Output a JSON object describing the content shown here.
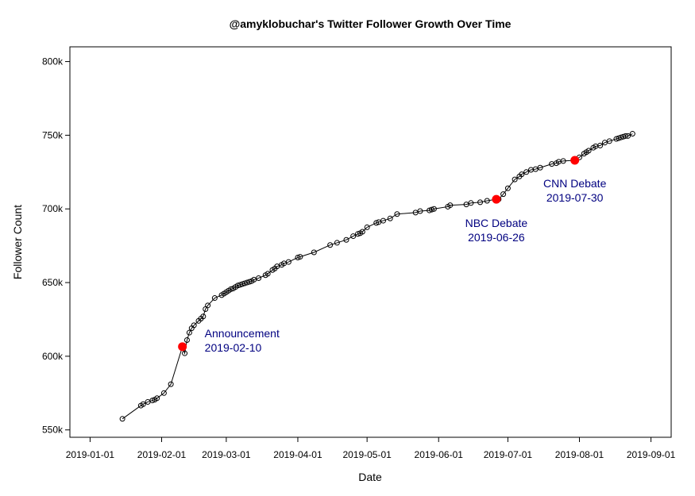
{
  "chart_data": {
    "type": "line",
    "title": "@amyklobuchar's Twitter Follower Growth Over Time",
    "xlabel": "Date",
    "ylabel": "Follower Count",
    "xlim": [
      "2019-01-01",
      "2019-09-01"
    ],
    "ylim": [
      545000,
      810000
    ],
    "x_ticks": [
      "2019-01-01",
      "2019-02-01",
      "2019-03-01",
      "2019-04-01",
      "2019-05-01",
      "2019-06-01",
      "2019-07-01",
      "2019-08-01",
      "2019-09-01"
    ],
    "y_ticks": [
      550000,
      600000,
      650000,
      700000,
      750000,
      800000
    ],
    "y_tick_labels": [
      "550k",
      "600k",
      "650k",
      "700k",
      "750k",
      "800k"
    ],
    "grid": false,
    "line_color": "#000000",
    "marker": "open-circle",
    "series": [
      {
        "x": [
          "2019-01-15",
          "2019-01-23",
          "2019-01-24",
          "2019-01-26",
          "2019-01-28",
          "2019-01-29",
          "2019-01-30",
          "2019-02-02",
          "2019-02-05",
          "2019-02-10",
          "2019-02-11",
          "2019-02-12",
          "2019-02-13",
          "2019-02-14",
          "2019-02-15",
          "2019-02-17",
          "2019-02-18",
          "2019-02-19",
          "2019-02-20",
          "2019-02-21",
          "2019-02-24",
          "2019-02-27",
          "2019-02-28",
          "2019-03-01",
          "2019-03-02",
          "2019-03-03",
          "2019-03-04",
          "2019-03-05",
          "2019-03-06",
          "2019-03-07",
          "2019-03-08",
          "2019-03-09",
          "2019-03-10",
          "2019-03-11",
          "2019-03-12",
          "2019-03-13",
          "2019-03-15",
          "2019-03-18",
          "2019-03-19",
          "2019-03-21",
          "2019-03-22",
          "2019-03-23",
          "2019-03-25",
          "2019-03-26",
          "2019-03-28",
          "2019-04-01",
          "2019-04-02",
          "2019-04-08",
          "2019-04-15",
          "2019-04-18",
          "2019-04-22",
          "2019-04-25",
          "2019-04-27",
          "2019-04-28",
          "2019-04-29",
          "2019-05-01",
          "2019-05-05",
          "2019-05-06",
          "2019-05-08",
          "2019-05-11",
          "2019-05-14",
          "2019-05-22",
          "2019-05-24",
          "2019-05-28",
          "2019-05-29",
          "2019-05-30",
          "2019-06-05",
          "2019-06-06",
          "2019-06-13",
          "2019-06-15",
          "2019-06-19",
          "2019-06-22",
          "2019-06-26",
          "2019-06-27",
          "2019-06-29",
          "2019-07-01",
          "2019-07-04",
          "2019-07-06",
          "2019-07-07",
          "2019-07-09",
          "2019-07-11",
          "2019-07-13",
          "2019-07-15",
          "2019-07-20",
          "2019-07-22",
          "2019-07-23",
          "2019-07-25",
          "2019-07-30",
          "2019-08-01",
          "2019-08-03",
          "2019-08-04",
          "2019-08-05",
          "2019-08-07",
          "2019-08-08",
          "2019-08-10",
          "2019-08-12",
          "2019-08-14",
          "2019-08-17",
          "2019-08-18",
          "2019-08-19",
          "2019-08-20",
          "2019-08-21",
          "2019-08-22",
          "2019-08-24"
        ],
        "y": [
          557500,
          566500,
          567500,
          569000,
          570000,
          570500,
          571500,
          575000,
          581000,
          606500,
          602000,
          611000,
          616000,
          619000,
          621000,
          624000,
          625500,
          627000,
          632000,
          634500,
          639500,
          641500,
          642500,
          643500,
          644500,
          645500,
          646000,
          647000,
          648000,
          648500,
          649000,
          649500,
          650000,
          650500,
          651000,
          652000,
          653000,
          655000,
          656000,
          658500,
          659500,
          661000,
          662000,
          663000,
          664000,
          667000,
          667500,
          670500,
          675500,
          677000,
          679000,
          681500,
          683000,
          683500,
          684500,
          687500,
          690500,
          691000,
          692000,
          693500,
          696500,
          697500,
          698500,
          699000,
          699500,
          700000,
          701500,
          702500,
          703000,
          704000,
          704500,
          705500,
          706500,
          706500,
          710000,
          714000,
          720000,
          722000,
          723500,
          725000,
          726500,
          727000,
          728000,
          730500,
          731000,
          732000,
          732500,
          733000,
          735000,
          737500,
          738500,
          739500,
          741500,
          742500,
          743000,
          745000,
          746000,
          747500,
          748000,
          748500,
          749000,
          749500,
          749500,
          751000
        ]
      }
    ],
    "highlight_color": "#ff0000",
    "annotation_color": "#000080",
    "annotations": [
      {
        "date": "2019-02-10",
        "value": 606500,
        "text_line1": "Announcement",
        "text_line2": "2019-02-10"
      },
      {
        "date": "2019-06-26",
        "value": 706500,
        "text_line1": "NBC Debate",
        "text_line2": "2019-06-26"
      },
      {
        "date": "2019-07-30",
        "value": 733000,
        "text_line1": "CNN Debate",
        "text_line2": "2019-07-30"
      }
    ]
  }
}
